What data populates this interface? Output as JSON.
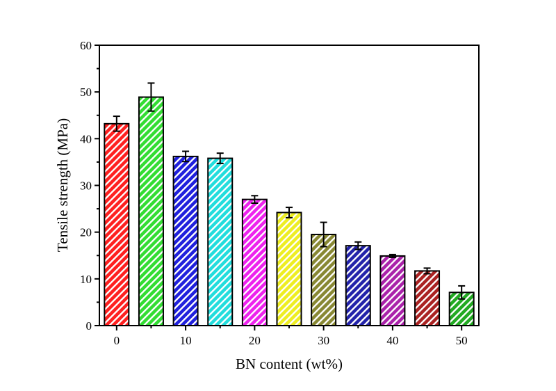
{
  "chart_data": {
    "type": "bar",
    "title": "",
    "xlabel": "BN content (wt%)",
    "ylabel": "Tensile strength (MPa)",
    "x_tick_labels": [
      "0",
      "10",
      "20",
      "30",
      "40",
      "50"
    ],
    "y_tick_labels": [
      "0",
      "10",
      "20",
      "30",
      "40",
      "50",
      "60"
    ],
    "ylim": [
      0,
      60
    ],
    "xlim": [
      -2.5,
      52.5
    ],
    "grid": false,
    "legend": "none",
    "hatch": "diagonal",
    "x": [
      0,
      5,
      10,
      15,
      20,
      25,
      30,
      35,
      40,
      45,
      50
    ],
    "values": [
      43.2,
      48.9,
      36.2,
      35.8,
      27.0,
      24.2,
      19.5,
      17.1,
      14.9,
      11.7,
      7.1
    ],
    "errors": [
      1.6,
      3.0,
      1.1,
      1.1,
      0.8,
      1.1,
      2.6,
      0.8,
      0.3,
      0.6,
      1.4
    ],
    "colors": [
      "#ff2020",
      "#33dd33",
      "#2020dd",
      "#22dddd",
      "#ee22ee",
      "#eeee22",
      "#888833",
      "#2222aa",
      "#aa22aa",
      "#aa2222",
      "#22aa22"
    ]
  }
}
